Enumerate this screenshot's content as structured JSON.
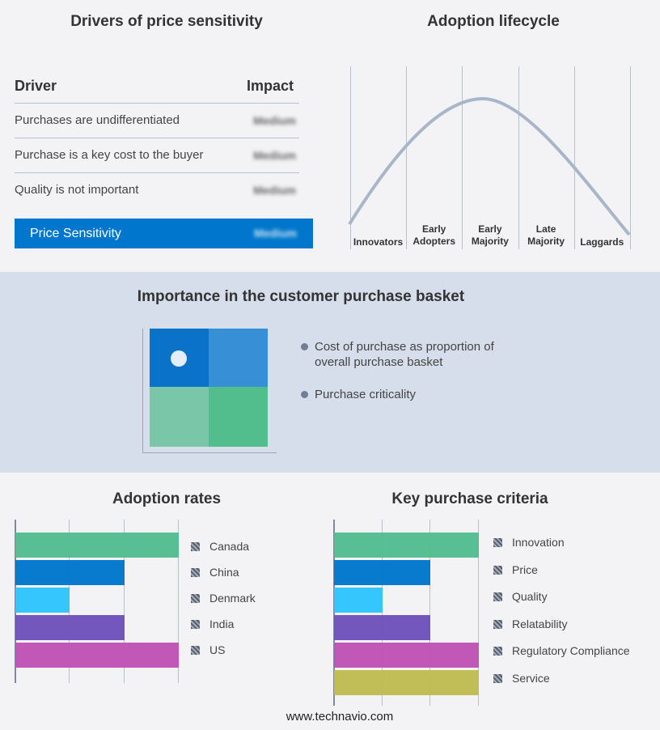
{
  "drivers": {
    "title": "Drivers of price sensitivity",
    "col_driver": "Driver",
    "col_impact": "Impact",
    "rows": [
      {
        "driver": "Purchases are undifferentiated",
        "impact": "Medium"
      },
      {
        "driver": "Purchase is a key cost to the buyer",
        "impact": "Medium"
      },
      {
        "driver": "Quality is not important",
        "impact": "Medium"
      }
    ],
    "summary": {
      "label": "Price Sensitivity",
      "impact": "Medium"
    },
    "accent": "#0077cc"
  },
  "lifecycle": {
    "title": "Adoption lifecycle",
    "stages": [
      [
        "Innovators"
      ],
      [
        "Early",
        "Adopters"
      ],
      [
        "Early",
        "Majority"
      ],
      [
        "Late",
        "Majority"
      ],
      [
        "Laggards"
      ]
    ],
    "curve_color": "#a9b6c9"
  },
  "basket": {
    "title": "Importance in the customer purchase basket",
    "legend": [
      "Cost of purchase as proportion of overall purchase basket",
      "Purchase criticality"
    ],
    "colors": [
      "#0a72c8",
      "#3790d6",
      "#79c7a8",
      "#52bd8d"
    ]
  },
  "chart_data": [
    {
      "type": "bar",
      "orientation": "horizontal",
      "title": "Adoption rates",
      "categories": [
        "Canada",
        "China",
        "Denmark",
        "India",
        "US"
      ],
      "values": [
        3,
        2,
        1,
        2,
        3
      ],
      "xlim": [
        0,
        3
      ],
      "grid": true,
      "legend_placement": "right",
      "colors": [
        "#52bd8f",
        "#0077cc",
        "#2ec4fd",
        "#6f52bb",
        "#bf52b5"
      ]
    },
    {
      "type": "bar",
      "orientation": "horizontal",
      "title": "Key purchase criteria",
      "categories": [
        "Innovation",
        "Price",
        "Quality",
        "Relatability",
        "Regulatory Compliance",
        "Service"
      ],
      "values": [
        3,
        2,
        1,
        2,
        3,
        3
      ],
      "xlim": [
        0,
        3
      ],
      "grid": true,
      "legend_placement": "right",
      "colors": [
        "#52bd8f",
        "#0077cc",
        "#2ec4fd",
        "#6f52bb",
        "#bf52b5",
        "#bfbb52"
      ]
    }
  ],
  "footer": "www.technavio.com"
}
